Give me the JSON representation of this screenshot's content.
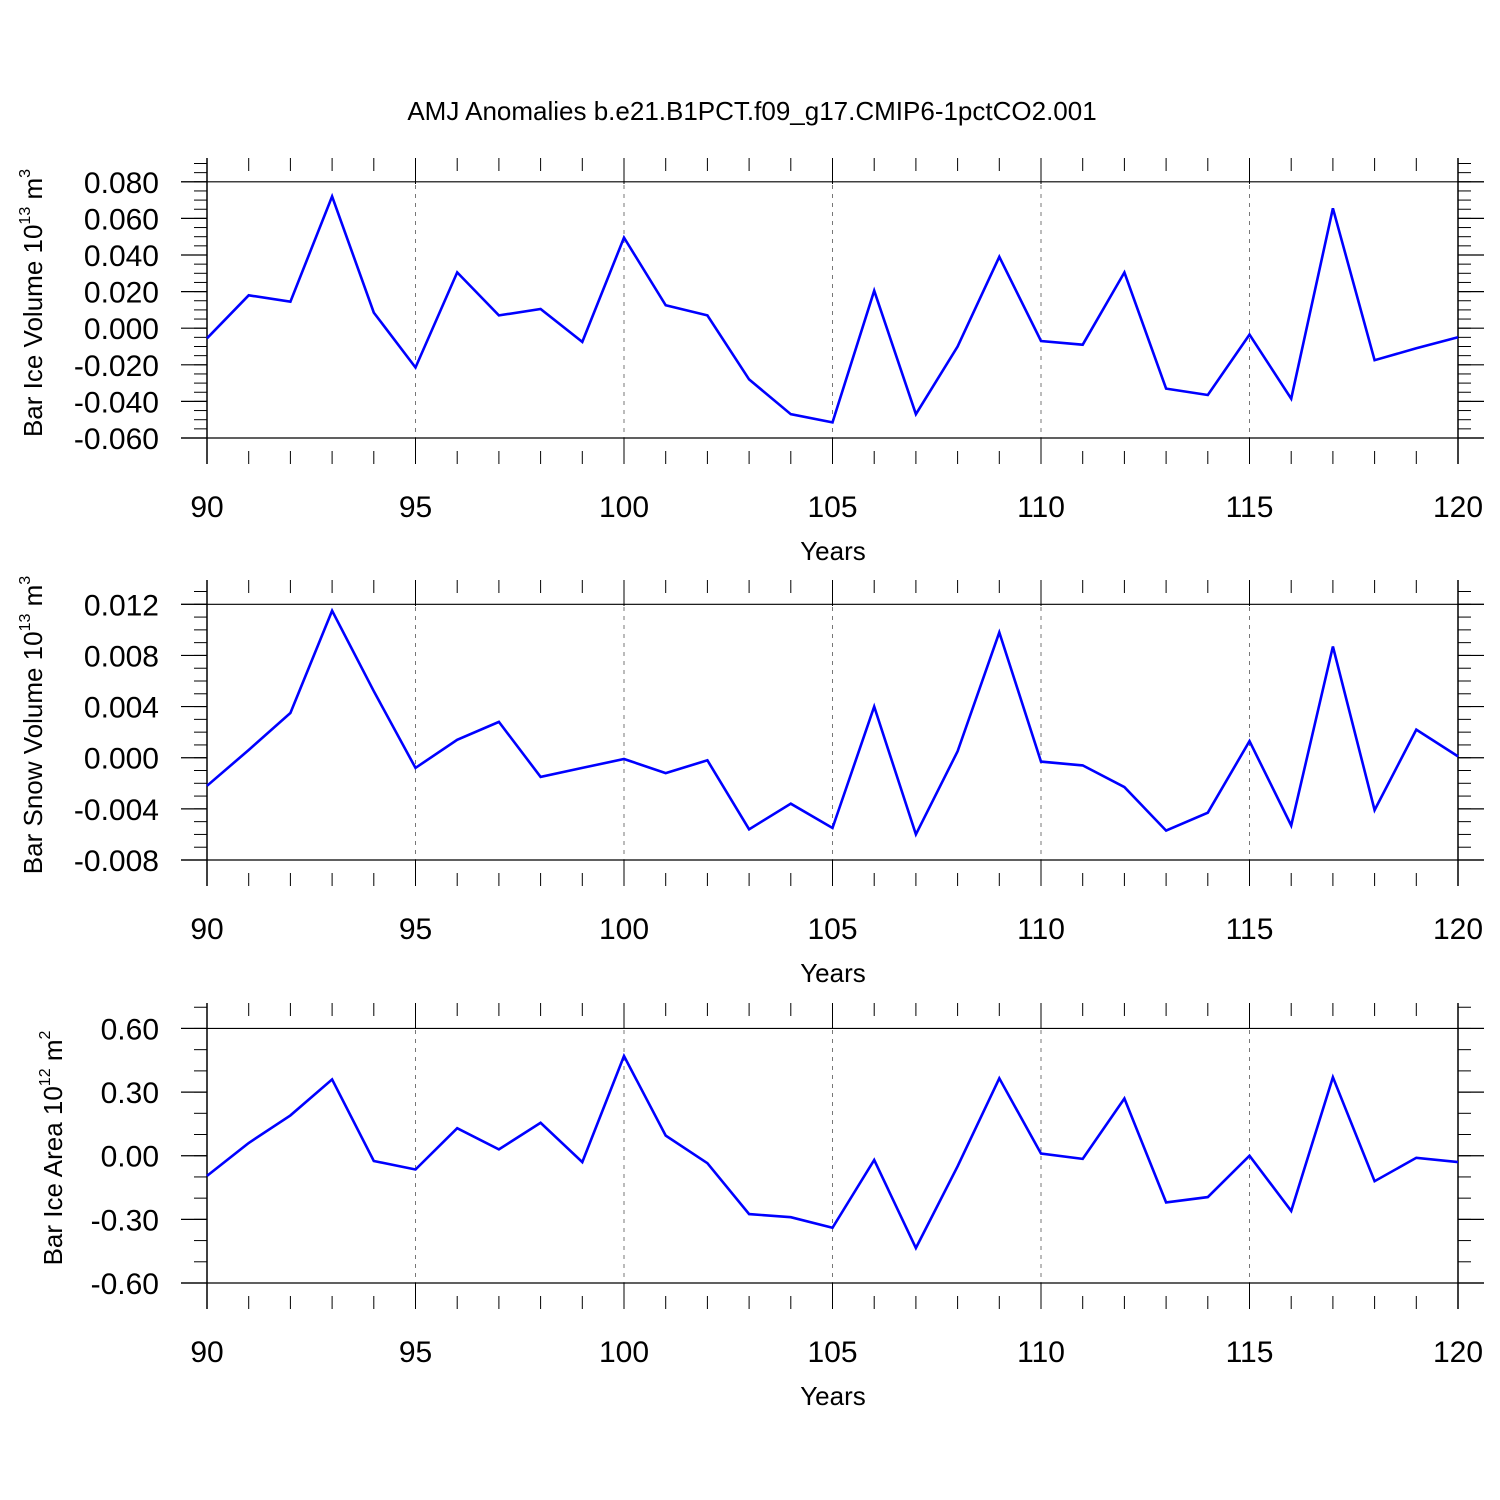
{
  "title": "AMJ Anomalies b.e21.B1PCT.f09_g17.CMIP6-1pctCO2.001",
  "series_color": "#0000ff",
  "chart_data": [
    {
      "type": "line",
      "ylabel": {
        "text": "Bar Ice Volume 10",
        "exp": "13",
        "unit": " m",
        "unit_exp": "3"
      },
      "xlabel": "Years",
      "xlim": [
        90,
        120
      ],
      "ylim": [
        -0.06,
        0.093
      ],
      "x_ticks": [
        90,
        95,
        100,
        105,
        110,
        115,
        120
      ],
      "y_ticks": [
        -0.06,
        -0.04,
        -0.02,
        0.0,
        0.02,
        0.04,
        0.06,
        0.08
      ],
      "y_tick_labels": [
        "-0.060",
        "-0.040",
        "-0.020",
        "0.000",
        "0.020",
        "0.040",
        "0.060",
        "0.080"
      ],
      "y_minor_step": 0.005,
      "x": [
        90,
        91,
        92,
        93,
        94,
        95,
        96,
        97,
        98,
        99,
        100,
        101,
        102,
        103,
        104,
        105,
        106,
        107,
        108,
        109,
        110,
        111,
        112,
        113,
        114,
        115,
        116,
        117,
        118,
        119,
        120
      ],
      "values": [
        -0.0055,
        0.018,
        0.0145,
        0.072,
        0.0085,
        -0.0215,
        0.0305,
        0.007,
        0.0105,
        -0.0075,
        0.0495,
        0.0125,
        0.007,
        -0.028,
        -0.047,
        -0.0515,
        0.0205,
        -0.047,
        -0.01,
        0.039,
        -0.007,
        -0.009,
        0.0305,
        -0.033,
        -0.0365,
        -0.0035,
        -0.0385,
        0.0655,
        -0.0175,
        -0.011,
        -0.005
      ]
    },
    {
      "type": "line",
      "ylabel": {
        "text": "Bar Snow Volume 10",
        "exp": "13",
        "unit": " m",
        "unit_exp": "3"
      },
      "xlabel": "Years",
      "xlim": [
        90,
        120
      ],
      "ylim": [
        -0.0089,
        0.0139
      ],
      "x_ticks": [
        90,
        95,
        100,
        105,
        110,
        115,
        120
      ],
      "y_ticks": [
        -0.008,
        -0.004,
        0.0,
        0.004,
        0.008,
        0.012
      ],
      "y_tick_labels": [
        "-0.008",
        "-0.004",
        "0.000",
        "0.004",
        "0.008",
        "0.012"
      ],
      "y_minor_step": 0.001,
      "x": [
        90,
        91,
        92,
        93,
        94,
        95,
        96,
        97,
        98,
        99,
        100,
        101,
        102,
        103,
        104,
        105,
        106,
        107,
        108,
        109,
        110,
        111,
        112,
        113,
        114,
        115,
        116,
        117,
        118,
        119,
        120
      ],
      "values": [
        -0.0022,
        0.0006,
        0.0035,
        0.0115,
        0.0052,
        -0.0008,
        0.0014,
        0.0028,
        -0.0015,
        -0.0008,
        -0.0001,
        -0.0012,
        -0.0002,
        -0.0056,
        -0.0036,
        -0.0055,
        0.004,
        -0.006,
        0.0005,
        0.0098,
        -0.0003,
        -0.0006,
        -0.0023,
        -0.0057,
        -0.0043,
        0.0013,
        -0.0053,
        0.0087,
        -0.0041,
        0.0022,
        0.0001
      ]
    },
    {
      "type": "line",
      "ylabel": {
        "text": "Bar Ice Area 10",
        "exp": "12",
        "unit": " m",
        "unit_exp": "2"
      },
      "xlabel": "Years",
      "xlim": [
        90,
        120
      ],
      "ylim": [
        -0.6,
        0.72
      ],
      "x_ticks": [
        90,
        95,
        100,
        105,
        110,
        115,
        120
      ],
      "y_ticks": [
        -0.6,
        -0.3,
        0.0,
        0.3,
        0.6
      ],
      "y_tick_labels": [
        "-0.60",
        "-0.30",
        "0.00",
        "0.30",
        "0.60"
      ],
      "y_minor_step": 0.1,
      "x": [
        90,
        91,
        92,
        93,
        94,
        95,
        96,
        97,
        98,
        99,
        100,
        101,
        102,
        103,
        104,
        105,
        106,
        107,
        108,
        109,
        110,
        111,
        112,
        113,
        114,
        115,
        116,
        117,
        118,
        119,
        120
      ],
      "values": [
        -0.095,
        0.06,
        0.19,
        0.36,
        -0.025,
        -0.065,
        0.13,
        0.03,
        0.155,
        -0.03,
        0.47,
        0.095,
        -0.035,
        -0.275,
        -0.29,
        -0.34,
        -0.02,
        -0.435,
        -0.05,
        0.365,
        0.01,
        -0.015,
        0.27,
        -0.22,
        -0.195,
        0.0,
        -0.26,
        0.37,
        -0.12,
        -0.01,
        -0.03
      ]
    }
  ]
}
